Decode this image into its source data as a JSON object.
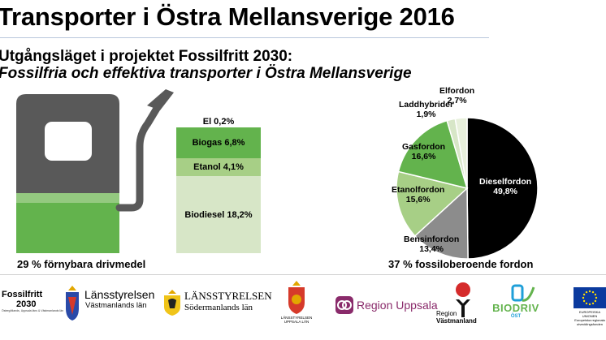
{
  "title": "Transporter i Östra Mellansverige 2016",
  "subtitle_line1": "Utgångsläget i projektet Fossilfritt 2030:",
  "subtitle_line2": "Fossilfria och effektiva transporter i Östra Mellansverige",
  "renewables": {
    "segments": [
      {
        "label": "El 0,2%",
        "value": 0.2,
        "color": "#ffffff"
      },
      {
        "label": "Biogas 6,8%",
        "value": 6.8,
        "color": "#63b34d"
      },
      {
        "label": "Etanol 4,1%",
        "value": 4.1,
        "color": "#a7cf86"
      },
      {
        "label": "Biodiesel 18,2%",
        "value": 18.2,
        "color": "#d7e6c7"
      }
    ],
    "caption": "29 % förnybara drivmedel"
  },
  "chart_data": {
    "type": "pie",
    "slices": [
      {
        "name": "Dieselfordon",
        "pct_label": "49,8%",
        "value": 49.8,
        "color": "#000000"
      },
      {
        "name": "Bensinfordon",
        "pct_label": "13,4%",
        "value": 13.4,
        "color": "#8c8c8c"
      },
      {
        "name": "Etanolfordon",
        "pct_label": "15,6%",
        "value": 15.6,
        "color": "#a7cf86"
      },
      {
        "name": "Gasfordon",
        "pct_label": "16,6%",
        "value": 16.6,
        "color": "#63b34d"
      },
      {
        "name": "Laddhybrider",
        "pct_label": "1,9%",
        "value": 1.9,
        "color": "#d7e6c7"
      },
      {
        "name": "Elfordon",
        "pct_label": "2,7%",
        "value": 2.7,
        "color": "#e8f0dc"
      }
    ],
    "caption": "37 % fossiloberoende fordon"
  },
  "logos": {
    "fossilfritt_l1": "Fossilfritt",
    "fossilfritt_l2": "2030",
    "fossilfritt_l3": "Östergötlands, Uppsala läns & Västmanlands län",
    "lst_vastmanland_l1": "Länsstyrelsen",
    "lst_vastmanland_l2": "Västmanlands län",
    "lst_sodermanland_l1": "LÄNSSTYRELSEN",
    "lst_sodermanland_l2": "Södermanlands län",
    "lst_uppsala": "LÄNSSTYRELSEN UPPSALA LÄN",
    "region_uppsala": "Region Uppsala",
    "region_vastmanland_l1": "Region",
    "region_vastmanland_l2": "Västmanland",
    "biodriv_l1": "BIODRIV",
    "biodriv_l2": "ÖST",
    "eu_l1": "EUROPEISKA UNIONEN",
    "eu_l2": "Europeiska regionala utvecklingsfonden",
    "colors": {
      "accent_green": "#63b34d",
      "region_purple": "#8a2b6b",
      "eu_blue": "#0b3a9e"
    }
  }
}
